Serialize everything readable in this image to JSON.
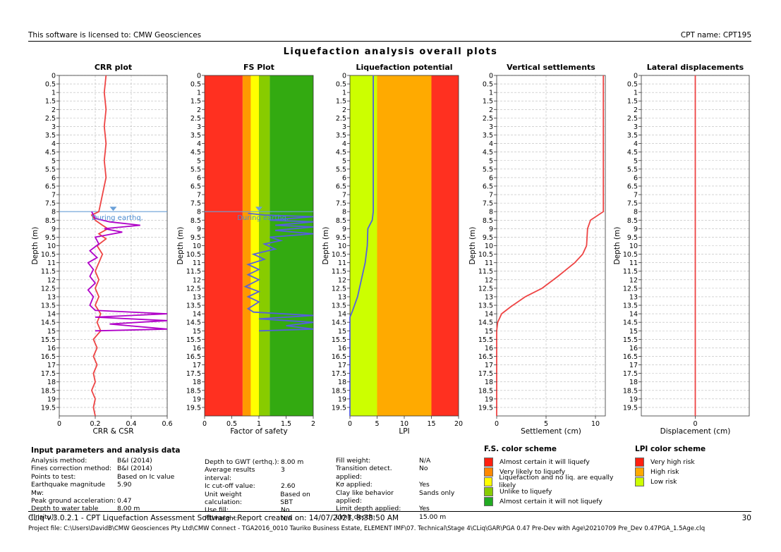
{
  "header": {
    "license": "This software is licensed to: CMW Geosciences",
    "cpt_name": "CPT name: CPT195"
  },
  "section_title": "Liquefaction analysis overall plots",
  "chart_data": [
    {
      "type": "line",
      "title": "CRR plot",
      "xlabel": "CRR & CSR",
      "ylabel": "Depth (m)",
      "xlim": [
        0,
        0.6
      ],
      "xticks": [
        "0",
        "0.2",
        "0.4",
        "0.6"
      ],
      "ylim": [
        0,
        20
      ],
      "annotation": "During earthq.",
      "water_table_depth": 8,
      "grid": true,
      "series": [
        {
          "color": "#ee4444",
          "points": [
            [
              0.26,
              0
            ],
            [
              0.25,
              1
            ],
            [
              0.26,
              2
            ],
            [
              0.25,
              3
            ],
            [
              0.26,
              4
            ],
            [
              0.25,
              5
            ],
            [
              0.26,
              6
            ],
            [
              0.24,
              7
            ],
            [
              0.23,
              7.5
            ],
            [
              0.22,
              8
            ],
            [
              0.18,
              8.2
            ],
            [
              0.2,
              8.5
            ],
            [
              0.24,
              8.8
            ],
            [
              0.27,
              9
            ],
            [
              0.22,
              9.3
            ],
            [
              0.26,
              9.6
            ],
            [
              0.21,
              10
            ],
            [
              0.24,
              10.5
            ],
            [
              0.22,
              11
            ],
            [
              0.2,
              11.5
            ],
            [
              0.22,
              12
            ],
            [
              0.2,
              12.5
            ],
            [
              0.22,
              13
            ],
            [
              0.2,
              13.5
            ],
            [
              0.23,
              14
            ],
            [
              0.21,
              14.5
            ],
            [
              0.23,
              15
            ],
            [
              0.19,
              15.5
            ],
            [
              0.21,
              16
            ],
            [
              0.19,
              16.5
            ],
            [
              0.21,
              17
            ],
            [
              0.19,
              17.5
            ],
            [
              0.2,
              18
            ],
            [
              0.18,
              18.5
            ],
            [
              0.2,
              19
            ],
            [
              0.19,
              19.5
            ],
            [
              0.2,
              20
            ]
          ]
        },
        {
          "color": "#b000c8",
          "points": [
            [
              0.18,
              8
            ],
            [
              0.2,
              8.4
            ],
            [
              0.28,
              8.6
            ],
            [
              0.45,
              8.8
            ],
            [
              0.25,
              9
            ],
            [
              0.35,
              9.2
            ],
            [
              0.2,
              9.5
            ],
            [
              0.22,
              9.9
            ],
            [
              0.17,
              10.3
            ],
            [
              0.21,
              10.7
            ],
            [
              0.16,
              11
            ],
            [
              0.19,
              11.4
            ],
            [
              0.17,
              11.8
            ],
            [
              0.2,
              12.2
            ],
            [
              0.16,
              12.6
            ],
            [
              0.19,
              13
            ],
            [
              0.17,
              13.5
            ],
            [
              0.2,
              13.8
            ],
            [
              0.6,
              14
            ],
            [
              0.2,
              14.2
            ],
            [
              0.6,
              14.4
            ],
            [
              0.28,
              14.6
            ],
            [
              0.6,
              14.9
            ],
            [
              0.2,
              15
            ]
          ]
        }
      ]
    },
    {
      "type": "line",
      "title": "FS Plot",
      "xlabel": "Factor of safety",
      "ylabel": "Depth (m)",
      "xlim": [
        0,
        2
      ],
      "xticks": [
        "0",
        "0.5",
        "1",
        "1.5",
        "2"
      ],
      "ylim": [
        0,
        20
      ],
      "annotation": "During earthq.",
      "water_table_depth": 8,
      "bands": [
        {
          "from": 0,
          "to": 0.7,
          "color": "#ff3020"
        },
        {
          "from": 0.7,
          "to": 0.85,
          "color": "#ff9900"
        },
        {
          "from": 0.85,
          "to": 1.0,
          "color": "#ffff00"
        },
        {
          "from": 1.0,
          "to": 1.2,
          "color": "#88cc00"
        },
        {
          "from": 1.2,
          "to": 2.0,
          "color": "#33aa11"
        }
      ],
      "series": [
        {
          "color": "#5560dd",
          "points": [
            [
              0.8,
              8.1
            ],
            [
              1.1,
              8.2
            ],
            [
              2,
              8.3
            ],
            [
              1.2,
              8.5
            ],
            [
              2,
              8.6
            ],
            [
              1.3,
              8.8
            ],
            [
              2,
              8.9
            ],
            [
              1.3,
              9.1
            ],
            [
              2,
              9.3
            ],
            [
              1.2,
              9.5
            ],
            [
              1.4,
              9.7
            ],
            [
              1.1,
              9.9
            ],
            [
              1.3,
              10.2
            ],
            [
              0.9,
              10.5
            ],
            [
              1.1,
              10.8
            ],
            [
              0.8,
              11.1
            ],
            [
              1.0,
              11.4
            ],
            [
              0.8,
              11.7
            ],
            [
              1.0,
              12
            ],
            [
              0.75,
              12.4
            ],
            [
              1.0,
              12.7
            ],
            [
              0.8,
              13
            ],
            [
              1.0,
              13.3
            ],
            [
              0.8,
              13.7
            ],
            [
              0.9,
              13.9
            ],
            [
              2,
              14.1
            ],
            [
              1.0,
              14.3
            ],
            [
              2,
              14.5
            ],
            [
              1.5,
              14.7
            ],
            [
              2,
              14.9
            ],
            [
              1.0,
              15
            ]
          ]
        }
      ]
    },
    {
      "type": "line",
      "title": "Liquefaction potential",
      "xlabel": "LPI",
      "ylabel": "Depth (m)",
      "xlim": [
        0,
        20
      ],
      "xticks": [
        "0",
        "5",
        "10",
        "15",
        "20"
      ],
      "ylim": [
        0,
        20
      ],
      "bands": [
        {
          "from": 0,
          "to": 5,
          "color": "#ccff00"
        },
        {
          "from": 5,
          "to": 15,
          "color": "#ffaa00"
        },
        {
          "from": 15,
          "to": 20,
          "color": "#ff3020"
        }
      ],
      "series": [
        {
          "color": "#5560dd",
          "points": [
            [
              4.3,
              0
            ],
            [
              4.3,
              8
            ],
            [
              4.1,
              8.5
            ],
            [
              3.3,
              9
            ],
            [
              3.2,
              10
            ],
            [
              2.8,
              11
            ],
            [
              2.1,
              12
            ],
            [
              1.4,
              13
            ],
            [
              0.5,
              13.8
            ],
            [
              0,
              14.2
            ],
            [
              0,
              20
            ]
          ]
        }
      ]
    },
    {
      "type": "line",
      "title": "Vertical settlements",
      "xlabel": "Settlement (cm)",
      "ylabel": "Depth (m)",
      "xlim": [
        0,
        11
      ],
      "xticks": [
        "0",
        "5",
        "10"
      ],
      "ylim": [
        0,
        20
      ],
      "grid": true,
      "series": [
        {
          "color": "#ee4444",
          "points": [
            [
              10.8,
              0
            ],
            [
              10.8,
              8
            ],
            [
              9.5,
              8.5
            ],
            [
              9.2,
              9
            ],
            [
              9.1,
              10
            ],
            [
              8.7,
              10.5
            ],
            [
              7.9,
              11
            ],
            [
              6.2,
              11.8
            ],
            [
              4.6,
              12.5
            ],
            [
              2.9,
              13
            ],
            [
              1.4,
              13.6
            ],
            [
              0.5,
              14
            ],
            [
              0.1,
              14.5
            ],
            [
              0,
              15
            ],
            [
              0,
              20
            ]
          ]
        }
      ]
    },
    {
      "type": "line",
      "title": "Lateral displacements",
      "xlabel": "Displacement (cm)",
      "ylabel": "Depth (m)",
      "xlim": [
        -1,
        1
      ],
      "xticks": [
        "0"
      ],
      "ylim": [
        0,
        20
      ],
      "grid": true,
      "series": [
        {
          "color": "#ee4444",
          "points": [
            [
              0,
              0
            ],
            [
              0,
              20
            ]
          ]
        }
      ]
    }
  ],
  "depth_ticks": [
    "0",
    "0.5",
    "1",
    "1.5",
    "2",
    "2.5",
    "3",
    "3.5",
    "4",
    "4.5",
    "5",
    "5.5",
    "6",
    "6.5",
    "7",
    "7.5",
    "8",
    "8.5",
    "9",
    "9.5",
    "10",
    "10.5",
    "11",
    "11.5",
    "12",
    "12.5",
    "13",
    "13.5",
    "14",
    "14.5",
    "15",
    "15.5",
    "16",
    "16.5",
    "17",
    "17.5",
    "18",
    "18.5",
    "19",
    "19.5"
  ],
  "params": {
    "title": "Input parameters and analysis data",
    "col1": [
      [
        "Analysis method:",
        "B&I (2014)"
      ],
      [
        "Fines correction method:",
        "B&I (2014)"
      ],
      [
        "Points to test:",
        "Based on Ic value"
      ],
      [
        "Earthquake magnitude Mw:",
        "5.90"
      ],
      [
        "Peak ground acceleration:",
        "0.47"
      ],
      [
        "Depth to water table (insitu):",
        "8.00 m"
      ]
    ],
    "col2": [
      [
        "Depth to GWT (erthq.):",
        "8.00 m"
      ],
      [
        "Average results interval:",
        "3"
      ],
      [
        "Ic cut-off value:",
        "2.60"
      ],
      [
        "Unit weight calculation:",
        "Based on SBT"
      ],
      [
        "Use fill:",
        "No"
      ],
      [
        "Fill height:",
        "N/A"
      ]
    ],
    "col3": [
      [
        "Fill weight:",
        "N/A"
      ],
      [
        "Transition detect. applied:",
        "No"
      ],
      [
        "Kσ applied:",
        "Yes"
      ],
      [
        "Clay like behavior applied:",
        "Sands only"
      ],
      [
        "Limit depth applied:",
        "Yes"
      ],
      [
        "Limit depth:",
        "15.00 m"
      ]
    ]
  },
  "fs_legend": {
    "title": "F.S. color scheme",
    "items": [
      {
        "color": "#ff2010",
        "label": "Almost certain it will liquefy"
      },
      {
        "color": "#ff8800",
        "label": "Very likely to liquefy"
      },
      {
        "color": "#ffff00",
        "label": "Liquefaction and no liq. are equally likely"
      },
      {
        "color": "#88cc00",
        "label": "Unlike to liquefy"
      },
      {
        "color": "#22aa22",
        "label": "Almost certain it will not liquefy"
      }
    ]
  },
  "lpi_legend": {
    "title": "LPI color scheme",
    "items": [
      {
        "color": "#ff2010",
        "label": "Very high risk"
      },
      {
        "color": "#ffaa00",
        "label": "High risk"
      },
      {
        "color": "#ccff00",
        "label": "Low risk"
      }
    ]
  },
  "footer": {
    "line1": "CLiq v.3.0.2.1 - CPT Liquefaction Assessment Software - Report created on: 14/07/2021, 8:38:50 AM",
    "page": "30",
    "line2": "Project file: C:\\Users\\DavidB\\CMW Geosciences Pty Ltd\\CMW Connect - TGA2016_0010 Tauriko Business Estate, ELEMENT IMF\\07. Technical\\Stage 4\\CLiq\\GAR\\PGA 0.47 Pre-Dev with Age\\20210709 Pre_Dev 0.47PGA_1.5Age.clq"
  }
}
